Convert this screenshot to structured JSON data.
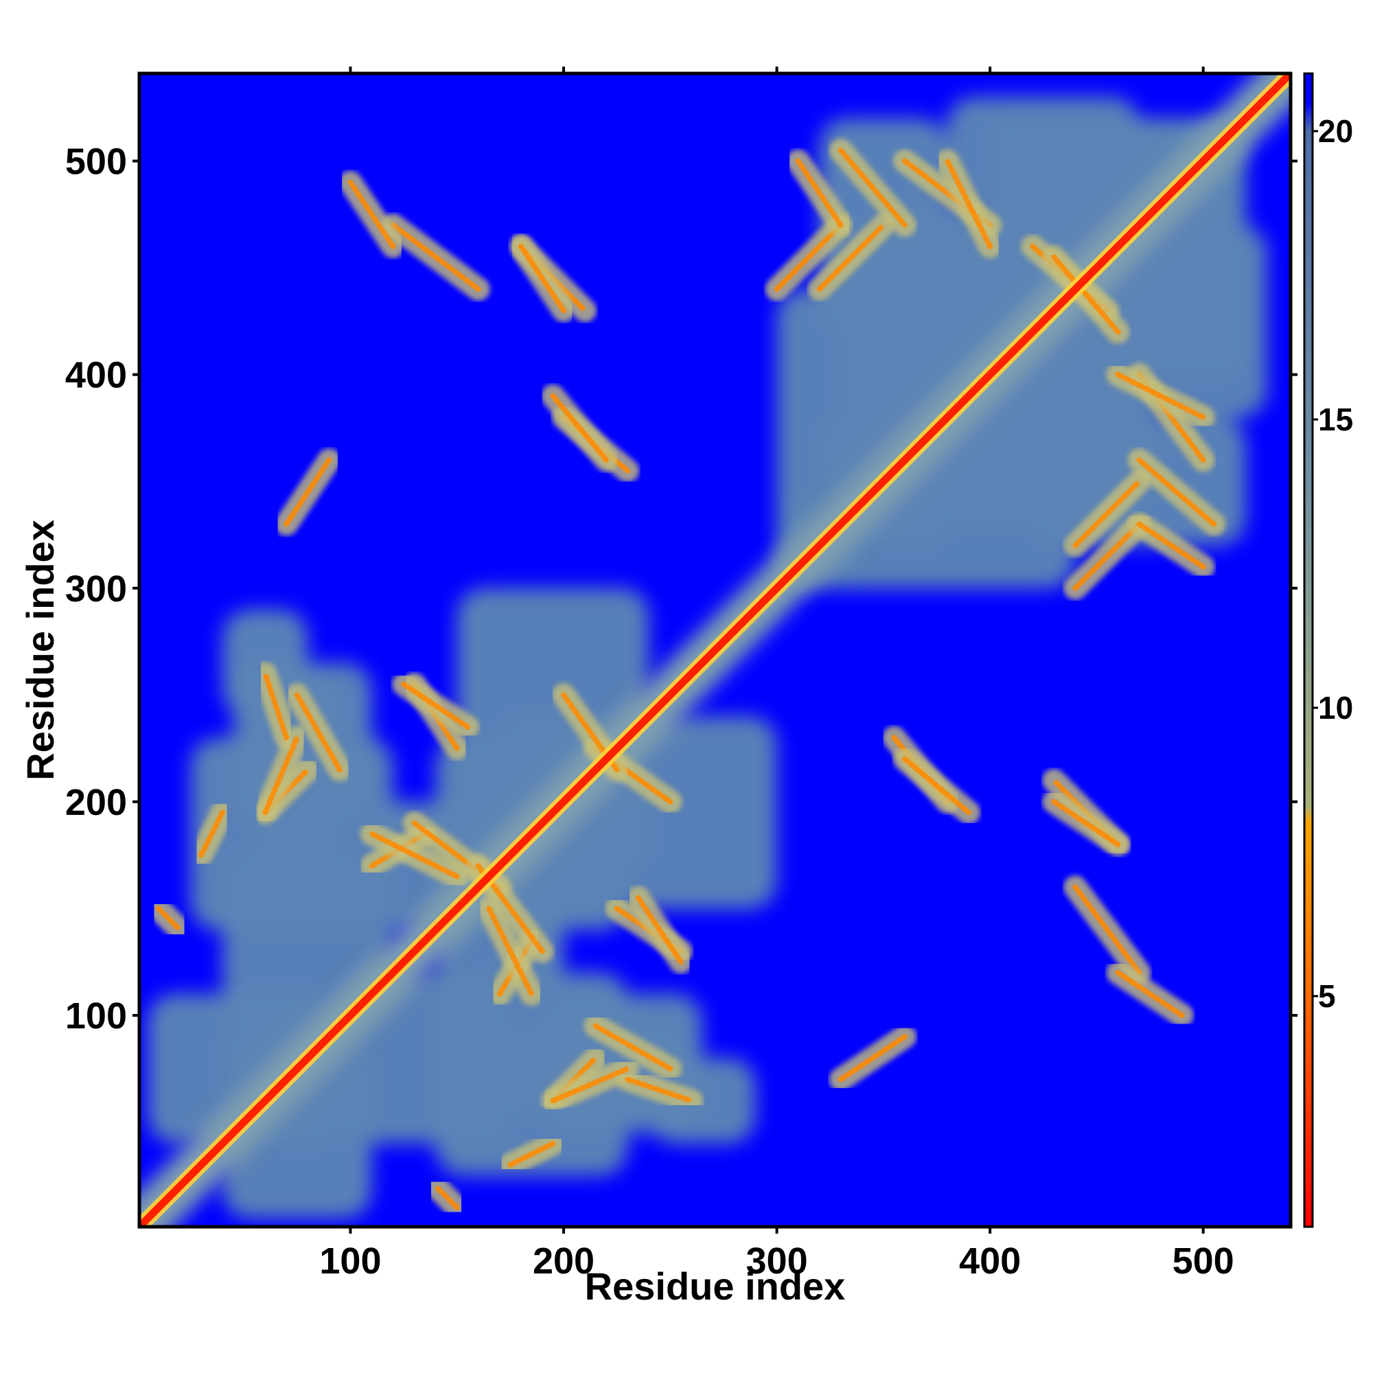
{
  "chart_data": {
    "type": "heatmap",
    "title": "",
    "xlabel": "Residue index",
    "ylabel": "Residue index",
    "xlim": [
      1,
      541
    ],
    "ylim": [
      1,
      541
    ],
    "xticks": [
      100,
      200,
      300,
      400,
      500
    ],
    "yticks": [
      100,
      200,
      300,
      400,
      500
    ],
    "colorbar": {
      "range": [
        1,
        21
      ],
      "ticks": [
        5,
        10,
        15,
        20
      ],
      "stops": [
        {
          "value": 1,
          "color": "#ff0000"
        },
        {
          "value": 5,
          "color": "#ff6a00"
        },
        {
          "value": 8,
          "color": "#ffa500"
        },
        {
          "value": 8.3,
          "color": "#a8b07a"
        },
        {
          "value": 14,
          "color": "#6f8fa3"
        },
        {
          "value": 20,
          "color": "#4f6ea8"
        },
        {
          "value": 20.5,
          "color": "#0000ff"
        },
        {
          "value": 21,
          "color": "#0000ff"
        }
      ]
    },
    "background_color": "#0000ff",
    "grey_color": "#5b84b6",
    "diagonal_color": "#ff2000",
    "regions": [
      [
        5,
        95,
        40,
        110
      ],
      [
        25,
        120,
        140,
        230
      ],
      [
        55,
        95,
        150,
        260
      ],
      [
        95,
        175,
        40,
        120
      ],
      [
        110,
        230,
        140,
        200
      ],
      [
        190,
        265,
        45,
        110
      ],
      [
        170,
        300,
        150,
        240
      ],
      [
        240,
        290,
        40,
        80
      ],
      [
        300,
        330,
        300,
        340
      ],
      [
        320,
        440,
        300,
        380
      ],
      [
        350,
        480,
        350,
        440
      ],
      [
        400,
        520,
        400,
        470
      ],
      [
        420,
        520,
        450,
        520
      ],
      [
        330,
        470,
        330,
        420
      ],
      [
        320,
        380,
        420,
        520
      ],
      [
        380,
        470,
        480,
        530
      ]
    ],
    "contacts": [
      {
        "x": [
          10,
          20
        ],
        "y": [
          150,
          140
        ]
      },
      {
        "x": [
          30,
          40
        ],
        "y": [
          175,
          195
        ]
      },
      {
        "x": [
          60,
          80
        ],
        "y": [
          195,
          215
        ]
      },
      {
        "x": [
          75,
          95
        ],
        "y": [
          250,
          215
        ]
      },
      {
        "x": [
          110,
          135
        ],
        "y": [
          170,
          185
        ]
      },
      {
        "x": [
          130,
          170
        ],
        "y": [
          190,
          160
        ]
      },
      {
        "x": [
          165,
          185
        ],
        "y": [
          150,
          110
        ]
      },
      {
        "x": [
          195,
          230
        ],
        "y": [
          60,
          75
        ]
      },
      {
        "x": [
          230,
          260
        ],
        "y": [
          70,
          60
        ]
      },
      {
        "x": [
          225,
          255
        ],
        "y": [
          150,
          130
        ]
      },
      {
        "x": [
          125,
          155
        ],
        "y": [
          255,
          235
        ]
      },
      {
        "x": [
          215,
          250
        ],
        "y": [
          225,
          200
        ]
      },
      {
        "x": [
          120,
          160
        ],
        "y": [
          470,
          440
        ]
      },
      {
        "x": [
          180,
          210
        ],
        "y": [
          460,
          430
        ]
      },
      {
        "x": [
          200,
          230
        ],
        "y": [
          380,
          355
        ]
      },
      {
        "x": [
          330,
          360
        ],
        "y": [
          505,
          470
        ]
      },
      {
        "x": [
          360,
          400
        ],
        "y": [
          500,
          470
        ]
      },
      {
        "x": [
          320,
          350
        ],
        "y": [
          440,
          470
        ]
      },
      {
        "x": [
          420,
          455
        ],
        "y": [
          460,
          430
        ]
      },
      {
        "x": [
          460,
          500
        ],
        "y": [
          400,
          380
        ]
      },
      {
        "x": [
          440,
          470
        ],
        "y": [
          300,
          330
        ]
      },
      {
        "x": [
          470,
          500
        ],
        "y": [
          330,
          310
        ]
      },
      {
        "x": [
          360,
          390
        ],
        "y": [
          220,
          195
        ]
      },
      {
        "x": [
          430,
          460
        ],
        "y": [
          200,
          180
        ]
      },
      {
        "x": [
          460,
          490
        ],
        "y": [
          120,
          100
        ]
      },
      {
        "x": [
          330,
          360
        ],
        "y": [
          70,
          90
        ]
      }
    ]
  }
}
